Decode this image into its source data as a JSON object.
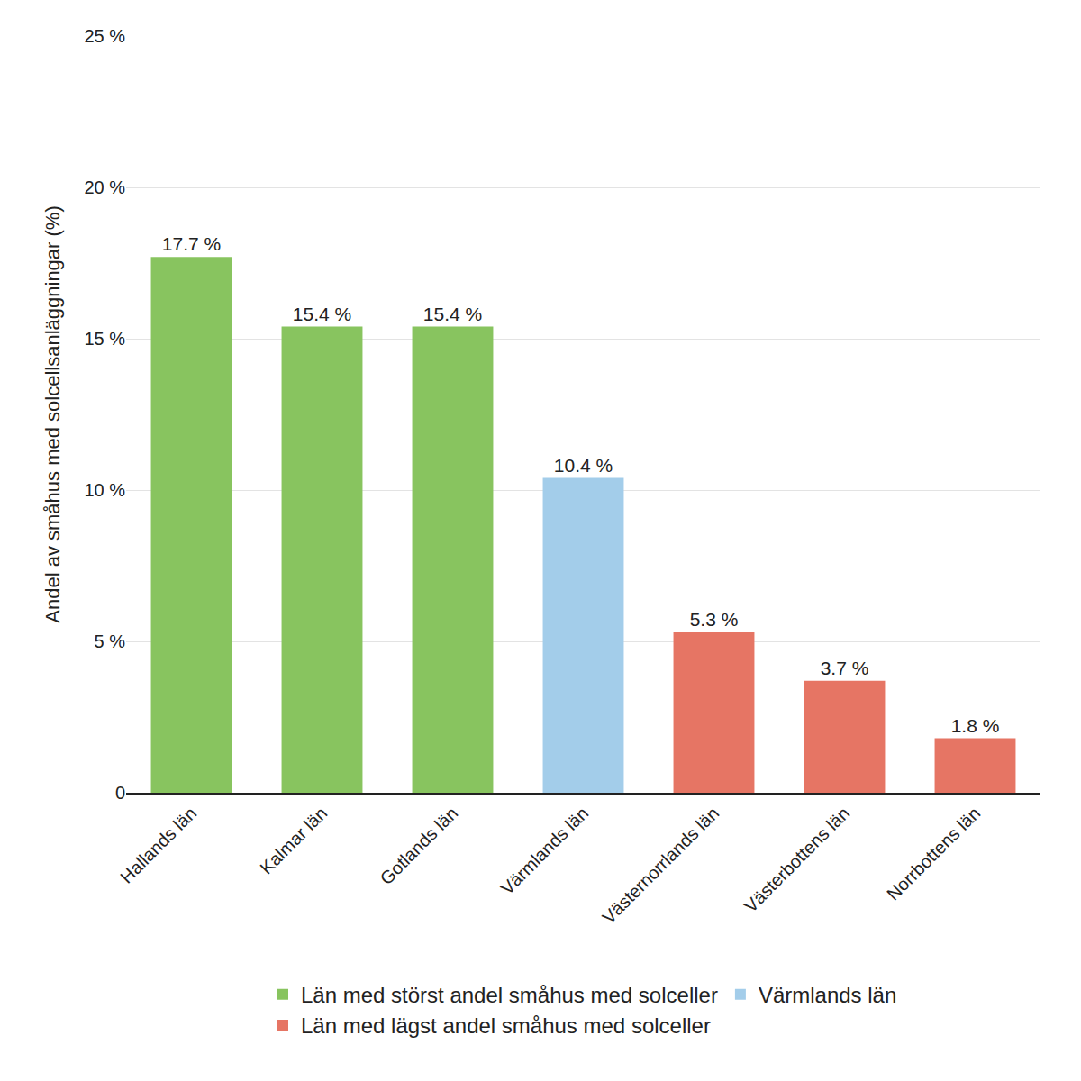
{
  "chart_data": {
    "type": "bar",
    "y_label": "Andel av småhus med solcellsanläggningar (%)",
    "categories": [
      "Hallands län",
      "Kalmar län",
      "Gotlands län",
      "Värmlands län",
      "Västernorrlands län",
      "Västerbottens län",
      "Norrbottens län"
    ],
    "series": [
      {
        "name": "Län med störst andel småhus med solceller",
        "color": "#88c45f",
        "values": [
          17.7,
          15.4,
          15.4,
          null,
          null,
          null,
          null
        ],
        "value_labels": [
          "17.7 %",
          "15.4 %",
          "15.4 %",
          null,
          null,
          null,
          null
        ]
      },
      {
        "name": "Värmlands län",
        "color": "#a3cdea",
        "values": [
          null,
          null,
          null,
          10.4,
          null,
          null,
          null
        ],
        "value_labels": [
          null,
          null,
          null,
          "10.4 %",
          null,
          null,
          null
        ]
      },
      {
        "name": "Län med lägst andel småhus med solceller",
        "color": "#e67564",
        "values": [
          null,
          null,
          null,
          null,
          5.3,
          3.7,
          1.8
        ],
        "value_labels": [
          null,
          null,
          null,
          null,
          "5.3 %",
          "3.7 %",
          "1.8 %"
        ]
      }
    ],
    "ylim": [
      0,
      25
    ],
    "yticks": [
      0,
      {
        "value": 5,
        "label": "5 %"
      },
      {
        "value": 10,
        "label": "10 %"
      },
      {
        "value": 15,
        "label": "15 %"
      },
      {
        "value": 20,
        "label": "20 %"
      },
      {
        "value": 25,
        "label": "25 %"
      }
    ],
    "grid": true,
    "data_labels": true,
    "legend": "bottom"
  }
}
